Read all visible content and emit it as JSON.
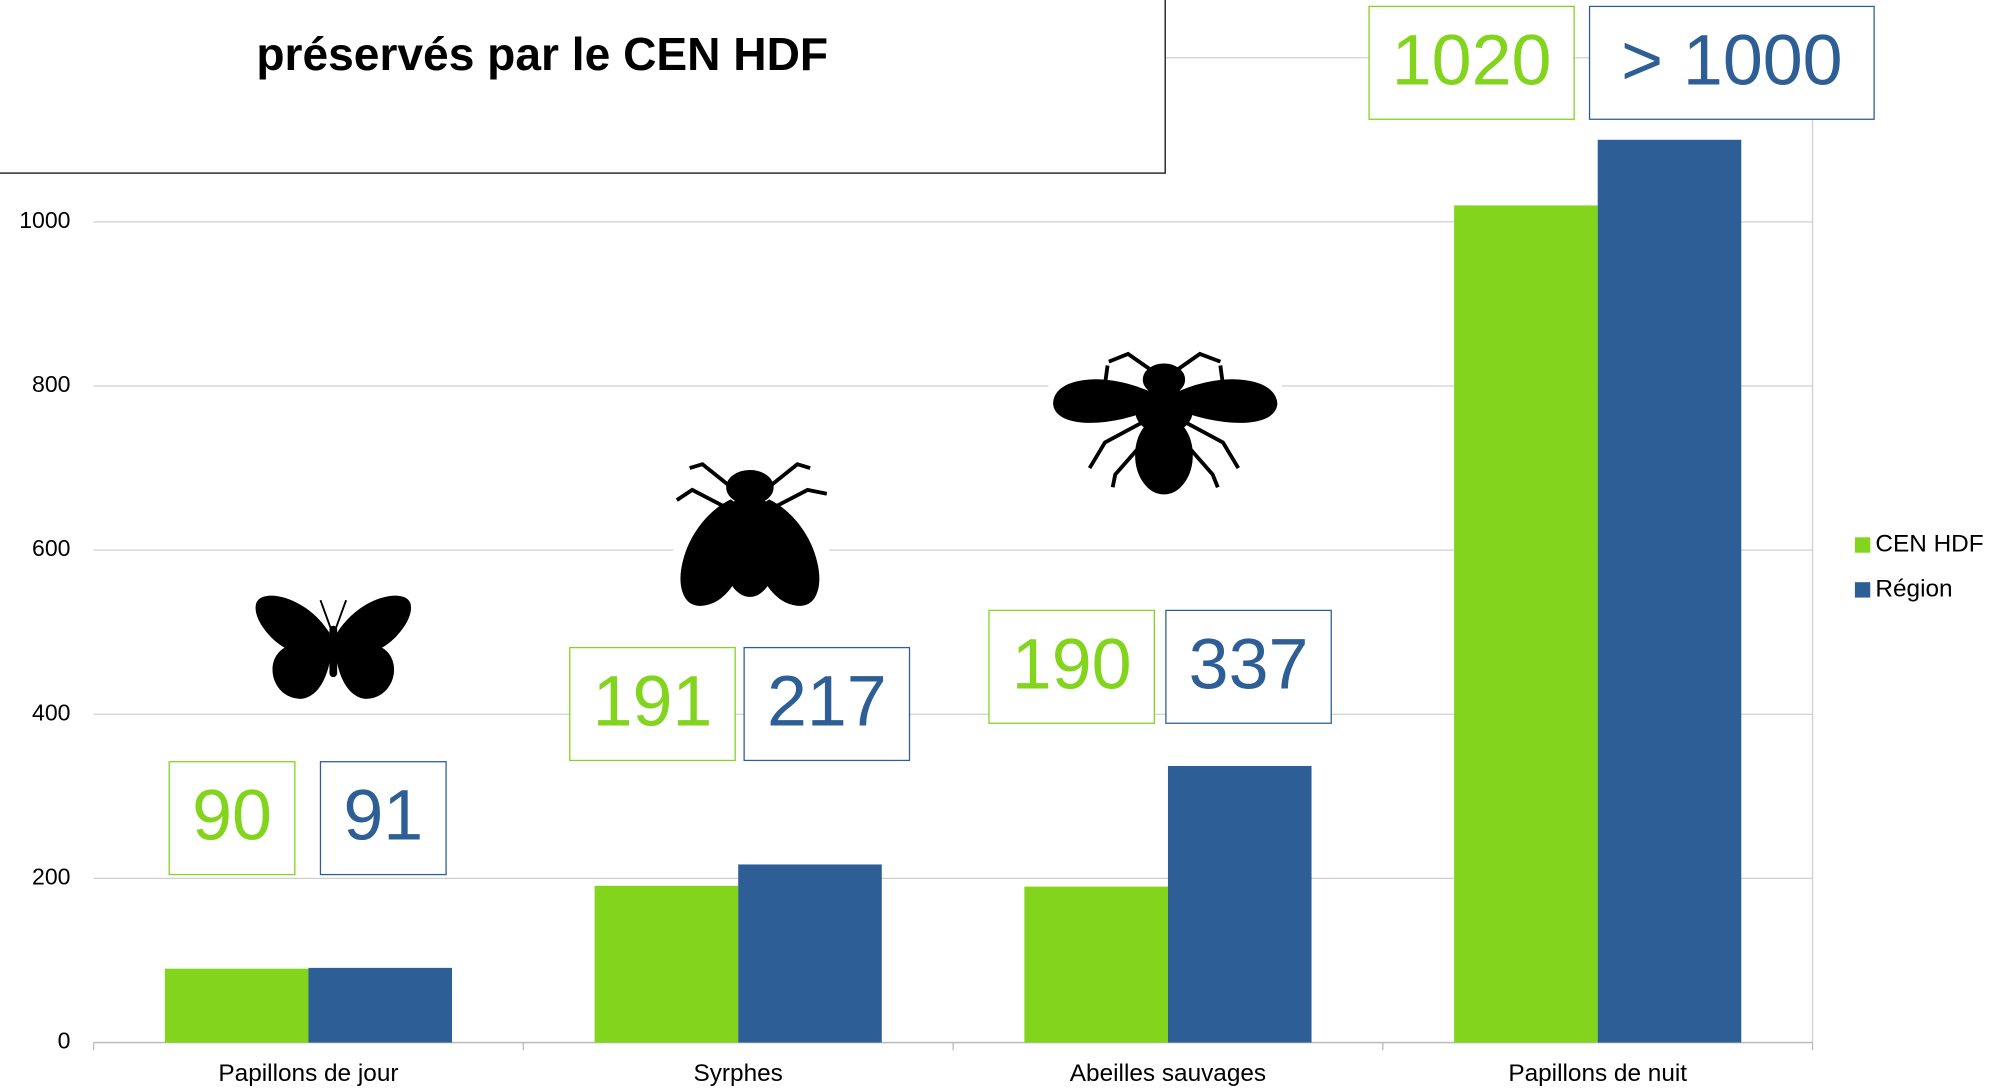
{
  "chart_data": {
    "type": "bar",
    "title": "préservés par le CEN HDF",
    "categories": [
      "Papillons de jour",
      "Syrphes",
      "Abeilles sauvages",
      "Papillons de nuit"
    ],
    "series": [
      {
        "name": "CEN HDF",
        "color": "#82d41c",
        "values": [
          90,
          191,
          190,
          1020
        ]
      },
      {
        "name": "Région",
        "color": "#2d5f96",
        "values": [
          91,
          217,
          337,
          1100
        ],
        "value_labels": [
          "91",
          "217",
          "337",
          "> 1000"
        ]
      }
    ],
    "ylim": [
      0,
      1200
    ],
    "yticks": [
      0,
      200,
      400,
      600,
      800,
      1000
    ],
    "grid": true,
    "legend": "right"
  }
}
